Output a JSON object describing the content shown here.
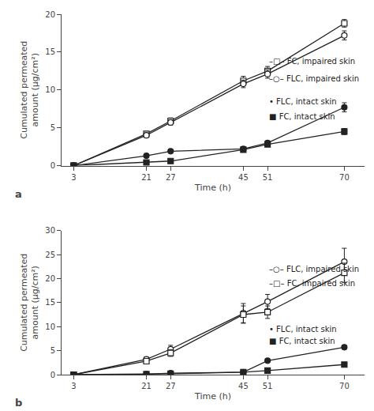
{
  "chart_data": [
    {
      "type": "line",
      "title": "a",
      "xlabel": "Time (h)",
      "ylabel": "Cumulated permeated\namount (μg/cm²)",
      "x": [
        3,
        21,
        27,
        45,
        51,
        70
      ],
      "xlim": [
        0,
        75
      ],
      "xticks": [
        3,
        21,
        27,
        45,
        51,
        70
      ],
      "ylim": [
        0,
        20
      ],
      "yticks": [
        0,
        5,
        10,
        15,
        20
      ],
      "grid": false,
      "color": "#222222",
      "series": [
        {
          "marker": "square-open",
          "values": [
            0,
            4.2,
            5.9,
            11.2,
            12.5,
            18.8
          ],
          "errors": [
            0,
            0.3,
            0.4,
            0.6,
            0.6,
            0.5
          ]
        },
        {
          "marker": "circle-open",
          "values": [
            0,
            4.0,
            5.7,
            10.8,
            12.1,
            17.2
          ],
          "errors": [
            0,
            0.3,
            0.35,
            0.5,
            0.55,
            0.6
          ]
        },
        {
          "marker": "circle",
          "values": [
            0,
            1.3,
            1.9,
            2.2,
            3.0,
            7.7
          ],
          "errors": [
            0,
            0.15,
            0.2,
            0.2,
            0.25,
            0.6
          ]
        },
        {
          "marker": "square",
          "values": [
            0,
            0.4,
            0.6,
            2.1,
            2.8,
            4.5
          ],
          "errors": [
            0,
            0.1,
            0.1,
            0.2,
            0.25,
            0.4
          ]
        }
      ],
      "annotations": [
        {
          "text": "–□– FC, impaired skin",
          "x": 51,
          "y": 13.8
        },
        {
          "text": "–○– FLC, impaired skin",
          "x": 51,
          "y": 11.5
        },
        {
          "text": "• FLC, intact skin",
          "x": 51,
          "y": 8.5
        },
        {
          "text": "■ FC, intact skin",
          "x": 51,
          "y": 6.5
        }
      ]
    },
    {
      "type": "line",
      "title": "b",
      "xlabel": "Time (h)",
      "ylabel": "Cumulated permeated\namount (μg/cm²)",
      "x": [
        3,
        21,
        27,
        45,
        51,
        70
      ],
      "xlim": [
        0,
        75
      ],
      "xticks": [
        3,
        21,
        27,
        45,
        51,
        70
      ],
      "ylim": [
        0,
        30
      ],
      "yticks": [
        0,
        5,
        10,
        15,
        20,
        25,
        30
      ],
      "grid": false,
      "color": "#222222",
      "series": [
        {
          "marker": "circle-open",
          "values": [
            0,
            3.2,
            5.3,
            12.8,
            15.2,
            23.5
          ],
          "errors": [
            0,
            0.5,
            0.8,
            2.0,
            1.5,
            2.8
          ]
        },
        {
          "marker": "square-open",
          "values": [
            0,
            2.8,
            4.5,
            12.5,
            13.0,
            21.2
          ],
          "errors": [
            0,
            0.5,
            0.7,
            1.8,
            1.3,
            2.0
          ]
        },
        {
          "marker": "circle",
          "values": [
            0,
            0.1,
            0.3,
            0.5,
            2.9,
            5.7
          ],
          "errors": [
            0,
            0.05,
            0.1,
            0.1,
            0.3,
            0.4
          ]
        },
        {
          "marker": "square",
          "values": [
            0,
            0.1,
            0.2,
            0.5,
            0.85,
            2.1
          ],
          "errors": [
            0,
            0.05,
            0.1,
            0.1,
            0.15,
            0.3
          ]
        }
      ],
      "annotations": [
        {
          "text": "–○– FLC, impaired skin",
          "x": 51,
          "y": 22.0
        },
        {
          "text": "–□– FC, impaired skin",
          "x": 51,
          "y": 19.0
        },
        {
          "text": "• FLC, intact skin",
          "x": 51,
          "y": 9.5
        },
        {
          "text": "■ FC, intact skin",
          "x": 51,
          "y": 7.0
        }
      ]
    }
  ]
}
